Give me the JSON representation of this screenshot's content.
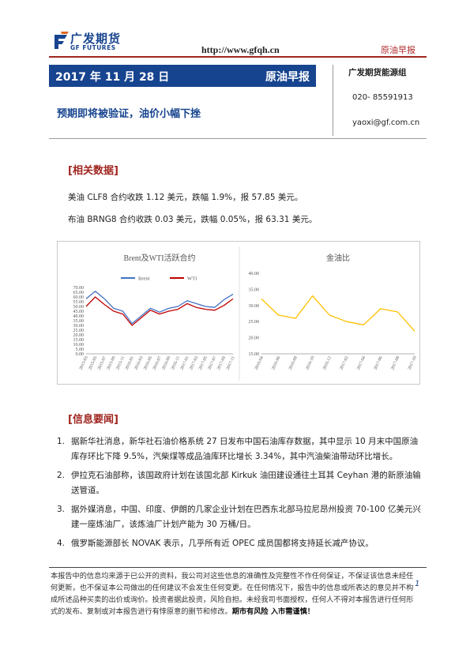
{
  "header": {
    "logo_cn": "广发期货",
    "logo_en": "GF FUTURES",
    "url": "http://www.gfqh.cn",
    "report_tag": "原油早报"
  },
  "title": {
    "date": "2017 年 11 月 28 日",
    "report_type": "原油早报",
    "headline": "预期即将被验证，油价小幅下挫"
  },
  "contact": {
    "team": "广发期货能源组",
    "phone": "020- 85591913",
    "email": "yaoxi@gf.com.cn"
  },
  "section_data": {
    "heading": "[相关数据]",
    "lines": [
      "美油 CLF8 合约收跌 1.12 美元，跌幅 1.9%，报 57.85 美元。",
      "布油 BRNG8 合约收跌 0.03 美元，跌幅 0.05%，报 63.31 美元。"
    ]
  },
  "chart_data": [
    {
      "type": "line",
      "title": "Brent及WTI活跃合约",
      "x": [
        "2015-03",
        "2015-05",
        "2015-07",
        "2015-09",
        "2015-11",
        "2016-01",
        "2016-03",
        "2016-05",
        "2016-07",
        "2016-09",
        "2016-11",
        "2017-01",
        "2017-03",
        "2017-05",
        "2017-07",
        "2017-09",
        "2017-11"
      ],
      "series": [
        {
          "name": "Brent",
          "color": "#4472c4",
          "values": [
            58,
            66,
            58,
            48,
            45,
            32,
            40,
            48,
            44,
            48,
            50,
            56,
            53,
            50,
            49,
            57,
            63
          ]
        },
        {
          "name": "WTI",
          "color": "#c00000",
          "values": [
            50,
            60,
            52,
            45,
            42,
            30,
            38,
            46,
            42,
            45,
            47,
            53,
            49,
            47,
            46,
            51,
            58
          ]
        }
      ],
      "ylim": [
        0,
        70
      ],
      "yticks": [
        "0.00",
        "5.00",
        "10.00",
        "15.00",
        "20.00",
        "25.00",
        "30.00",
        "35.00",
        "40.00",
        "45.00",
        "50.00",
        "55.00",
        "60.00",
        "65.00",
        "70.00"
      ],
      "xlabel": "",
      "ylabel": "",
      "legend": "top-center",
      "grid": false
    },
    {
      "type": "line",
      "title": "金油比",
      "x": [
        "2016-04",
        "2016-06",
        "2016-08",
        "2016-10",
        "2016-12",
        "2017-02",
        "2017-04",
        "2017-06",
        "2017-08",
        "2017-10"
      ],
      "series": [
        {
          "color": "#ffc000",
          "values": [
            32,
            27,
            26,
            33,
            27,
            25,
            24,
            29,
            28,
            22
          ]
        }
      ],
      "ylim": [
        15,
        40
      ],
      "yticks": [
        "15.00",
        "20.00",
        "25.00",
        "30.00",
        "35.00",
        "40.00"
      ],
      "xlabel": "",
      "ylabel": "",
      "grid": false
    }
  ],
  "section_news": {
    "heading": "[信息要闻]",
    "items": [
      {
        "num": "1.",
        "text": "据新华社消息，新华社石油价格系统 27 日发布中国石油库存数据，其中显示 10 月末中国原油库存环比下降 9.5%，汽柴煤等成品油库环比增长 3.34%，其中汽油柴油带动环比增长。"
      },
      {
        "num": "2.",
        "text": "伊拉克石油部称，该国政府计划在该国北部 Kirkuk 油田建设通往土耳其 Ceyhan 港的新原油输送管道。"
      },
      {
        "num": "3.",
        "text": "据外媒消息，中国、印度、伊朗的几家企业计划在巴西东北部马拉尼昂州投资 70-100 亿美元兴建一座炼油厂，该炼油厂计划产能为 30 万桶/日。"
      },
      {
        "num": "4.",
        "text": "俄罗斯能源部长 NOVAK 表示，几乎所有近 OPEC 成员国都将支持延长减产协议。"
      }
    ]
  },
  "footer": {
    "disclaimer": "本报告中的信息均来源于已公开的资料，我公司对这些信息的准确性及完整性不作任何保证，不保证该信息未经任何更新，也不保证本公司做出的任何建议不会发生任何变更。在任何情况下，报告中的信息或所表达的意见并不构成所述品种买卖的出价或询价。投资者据此投资，风险自担。未经我司书面授权，任何人不得对本报告进行任何形式的发布、复制或对本报告进行有悖原意的删节和修改。",
    "risk_warning": "期市有风险 入市需谨慎！",
    "page": "1"
  }
}
